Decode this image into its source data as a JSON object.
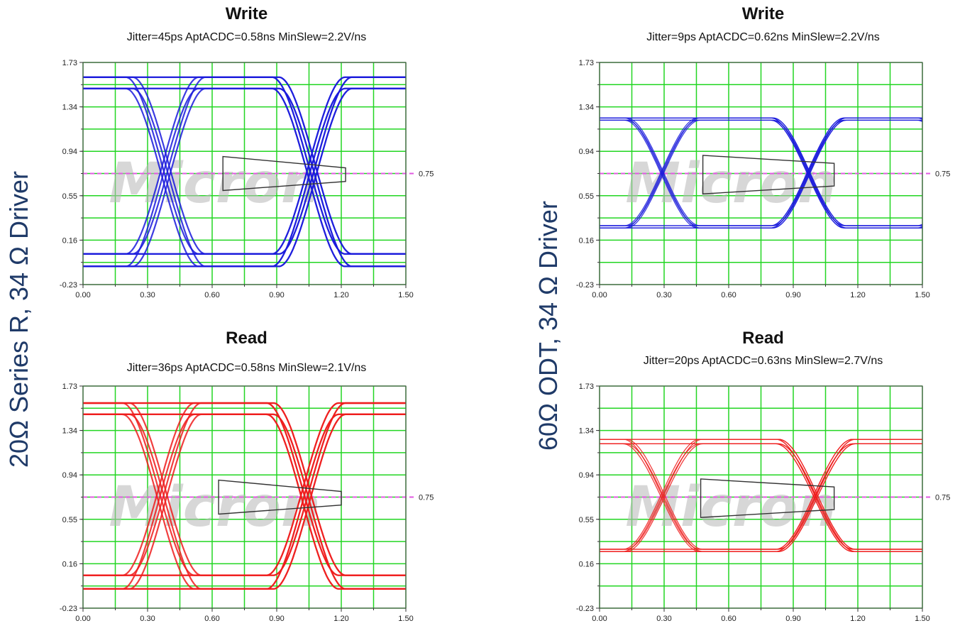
{
  "side_labels": {
    "left": "20Ω Series R, 34 Ω Driver",
    "right": "60Ω ODT, 34 Ω Driver"
  },
  "watermark": "Micron",
  "colors": {
    "write": "#1a1adc",
    "read": "#ee1c1c",
    "grid": "#22d622",
    "ref": "#e05ae0",
    "mask": "#333333"
  },
  "chart_data": [
    {
      "type": "line",
      "title": "Write",
      "subtitle": "Jitter=45ps  AptACDC=0.58ns  MinSlew=2.2V/ns",
      "x_ticks": [
        "0.00",
        "0.30",
        "0.60",
        "0.90",
        "1.20",
        "1.50"
      ],
      "y_ticks": [
        "1.73",
        "1.34",
        "0.94",
        "0.55",
        "0.16",
        "-0.23"
      ],
      "xlim": [
        0,
        1.5
      ],
      "ylim": [
        -0.23,
        1.73
      ],
      "reference": {
        "value": 0.75,
        "label": "0.75"
      },
      "eye": {
        "t0": -0.13,
        "period": 0.68,
        "vhigh": [
          1.6,
          1.5
        ],
        "vlow": [
          0.04,
          -0.07
        ],
        "spread": 0.02
      },
      "mask": {
        "x": [
          0.65,
          1.22
        ],
        "y_inner": [
          0.6,
          0.9
        ],
        "y_outer": [
          0.68,
          0.8
        ]
      },
      "grid": true,
      "color_key": "write"
    },
    {
      "type": "line",
      "title": "Write",
      "subtitle": "Jitter=9ps  AptACDC=0.62ns  MinSlew=2.2V/ns",
      "x_ticks": [
        "0.00",
        "0.30",
        "0.60",
        "0.90",
        "1.20",
        "1.50"
      ],
      "y_ticks": [
        "1.73",
        "1.34",
        "0.94",
        "0.55",
        "0.16",
        "-0.23"
      ],
      "xlim": [
        0,
        1.5
      ],
      "ylim": [
        -0.23,
        1.73
      ],
      "reference": {
        "value": 0.75,
        "label": "0.75"
      },
      "eye": {
        "t0": -0.22,
        "period": 0.68,
        "vhigh": [
          1.24,
          1.22
        ],
        "vlow": [
          0.29,
          0.27
        ],
        "spread": 0.006
      },
      "mask": {
        "x": [
          0.48,
          1.09
        ],
        "y_inner": [
          0.57,
          0.91
        ],
        "y_outer": [
          0.64,
          0.84
        ]
      },
      "grid": true,
      "color_key": "write"
    },
    {
      "type": "line",
      "title": "Read",
      "subtitle": "Jitter=36ps  AptACDC=0.58ns  MinSlew=2.1V/ns",
      "x_ticks": [
        "0.00",
        "0.30",
        "0.60",
        "0.90",
        "1.20",
        "1.50"
      ],
      "y_ticks": [
        "1.73",
        "1.34",
        "0.94",
        "0.55",
        "0.16",
        "-0.23"
      ],
      "xlim": [
        0,
        1.5
      ],
      "ylim": [
        -0.23,
        1.73
      ],
      "reference": {
        "value": 0.75,
        "label": "0.75"
      },
      "eye": {
        "t0": -0.14,
        "period": 0.67,
        "vhigh": [
          1.58,
          1.48
        ],
        "vlow": [
          0.06,
          -0.06
        ],
        "spread": 0.02
      },
      "mask": {
        "x": [
          0.63,
          1.2
        ],
        "y_inner": [
          0.6,
          0.9
        ],
        "y_outer": [
          0.68,
          0.8
        ]
      },
      "grid": true,
      "color_key": "read"
    },
    {
      "type": "line",
      "title": "Read",
      "subtitle": "Jitter=20ps  AptACDC=0.63ns  MinSlew=2.7V/ns",
      "x_ticks": [
        "0.00",
        "0.30",
        "0.60",
        "0.90",
        "1.20",
        "1.50"
      ],
      "y_ticks": [
        "1.73",
        "1.34",
        "0.94",
        "0.55",
        "0.16",
        "-0.23"
      ],
      "xlim": [
        0,
        1.5
      ],
      "ylim": [
        -0.23,
        1.73
      ],
      "reference": {
        "value": 0.75,
        "label": "0.75"
      },
      "eye": {
        "t0": -0.24,
        "period": 0.71,
        "vhigh": [
          1.26,
          1.22
        ],
        "vlow": [
          0.29,
          0.27
        ],
        "spread": 0.008
      },
      "mask": {
        "x": [
          0.47,
          1.09
        ],
        "y_inner": [
          0.57,
          0.91
        ],
        "y_outer": [
          0.64,
          0.84
        ]
      },
      "grid": true,
      "color_key": "read"
    }
  ]
}
